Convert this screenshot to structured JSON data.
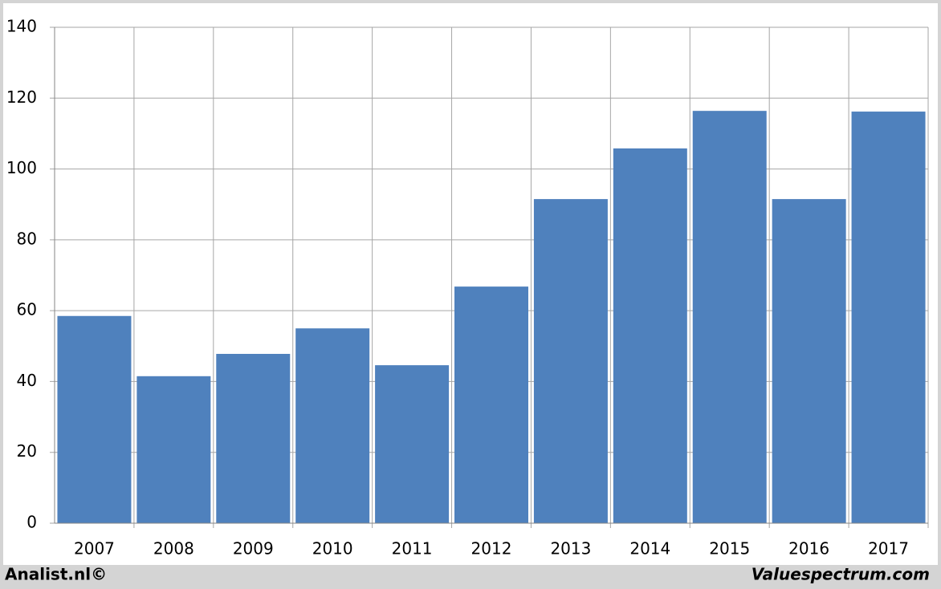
{
  "chart_data": {
    "type": "bar",
    "categories": [
      "2007",
      "2008",
      "2009",
      "2010",
      "2011",
      "2012",
      "2013",
      "2014",
      "2015",
      "2016",
      "2017"
    ],
    "values": [
      58.5,
      41.5,
      47.8,
      55,
      44.6,
      66.8,
      91.5,
      105.8,
      116.4,
      91.5,
      116.2
    ],
    "color": "#4f81bd",
    "ylim": [
      0,
      140
    ],
    "yticks": [
      0,
      20,
      40,
      60,
      80,
      100,
      120,
      140
    ],
    "grid": true
  },
  "footer": {
    "left": "Analist.nl©",
    "right": "Valuespectrum.com"
  }
}
